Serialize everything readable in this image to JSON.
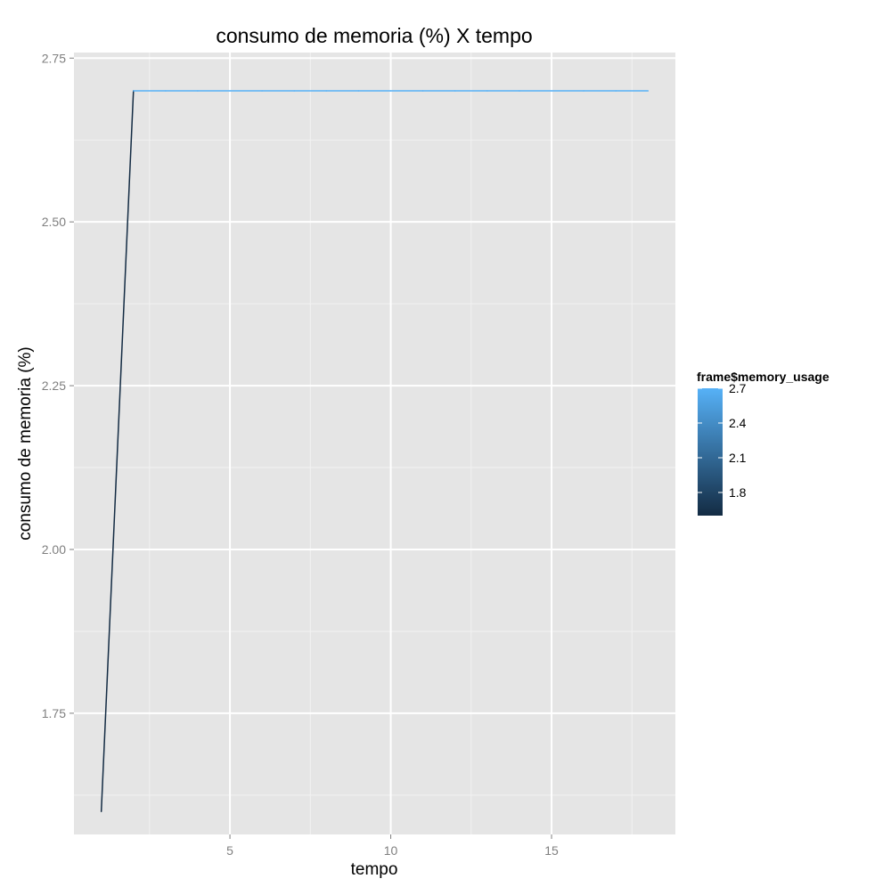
{
  "chart_data": {
    "type": "line",
    "title": "consumo de memoria (%) X tempo",
    "xlabel": "tempo",
    "ylabel": "consumo de memoria (%)",
    "xlim": [
      0.15,
      18.85
    ],
    "ylim": [
      1.565,
      2.7585
    ],
    "x_ticks": [
      5,
      10,
      15
    ],
    "x_tick_labels": [
      "5",
      "10",
      "15"
    ],
    "y_ticks": [
      1.75,
      2.0,
      2.25,
      2.5,
      2.75
    ],
    "y_tick_labels": [
      "1.75",
      "2.00",
      "2.25",
      "2.50",
      "2.75"
    ],
    "grid": true,
    "series": [
      {
        "x": [
          1,
          2,
          3,
          4,
          5,
          6,
          7,
          8,
          9,
          10,
          11,
          12,
          13,
          14,
          15,
          16,
          17,
          18
        ],
        "y": [
          1.6,
          2.7,
          2.7,
          2.7,
          2.7,
          2.7,
          2.7,
          2.7,
          2.7,
          2.7,
          2.7,
          2.7,
          2.7,
          2.7,
          2.7,
          2.7,
          2.7,
          2.7
        ]
      }
    ],
    "colour_scale": {
      "title": "frame$memory_usage",
      "min": 1.6,
      "max": 2.7,
      "low_color": "#132B43",
      "high_color": "#56B1F7",
      "breaks": [
        1.8,
        2.1,
        2.4,
        2.7
      ],
      "break_labels": [
        "1.8",
        "2.1",
        "2.4",
        "2.7"
      ]
    },
    "legend_position": "right",
    "panel_color": "#E5E5E5",
    "grid_color": "#FFFFFF"
  }
}
